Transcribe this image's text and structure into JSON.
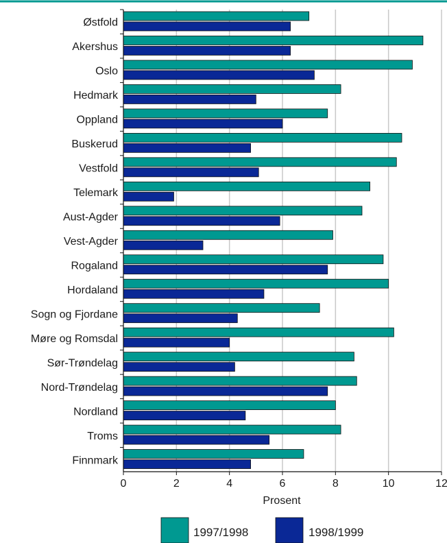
{
  "chart_data": {
    "type": "bar",
    "orientation": "horizontal",
    "title": "",
    "xlabel": "Prosent",
    "ylabel": "",
    "xlim": [
      0,
      12
    ],
    "xticks": [
      0,
      2,
      4,
      6,
      8,
      10,
      12
    ],
    "grid": true,
    "legend_position": "bottom",
    "categories": [
      "Østfold",
      "Akershus",
      "Oslo",
      "Hedmark",
      "Oppland",
      "Buskerud",
      "Vestfold",
      "Telemark",
      "Aust-Agder",
      "Vest-Agder",
      "Rogaland",
      "Hordaland",
      "Sogn og Fjordane",
      "Møre og Romsdal",
      "Sør-Trøndelag",
      "Nord-Trøndelag",
      "Nordland",
      "Troms",
      "Finnmark"
    ],
    "series": [
      {
        "name": "1997/1998",
        "color": "#009991",
        "values": [
          7.0,
          11.3,
          10.9,
          8.2,
          7.7,
          10.5,
          10.3,
          9.3,
          9.0,
          7.9,
          9.8,
          10.0,
          7.4,
          10.2,
          8.7,
          8.8,
          8.0,
          8.2,
          6.8
        ]
      },
      {
        "name": "1998/1999",
        "color": "#0a2896",
        "values": [
          6.3,
          6.3,
          7.2,
          5.0,
          6.0,
          4.8,
          5.1,
          1.9,
          5.9,
          3.0,
          7.7,
          5.3,
          4.3,
          4.0,
          4.2,
          7.7,
          4.6,
          5.5,
          4.8
        ]
      }
    ],
    "top_rule_color": "#009991",
    "grid_color": "#c8c8c8"
  }
}
